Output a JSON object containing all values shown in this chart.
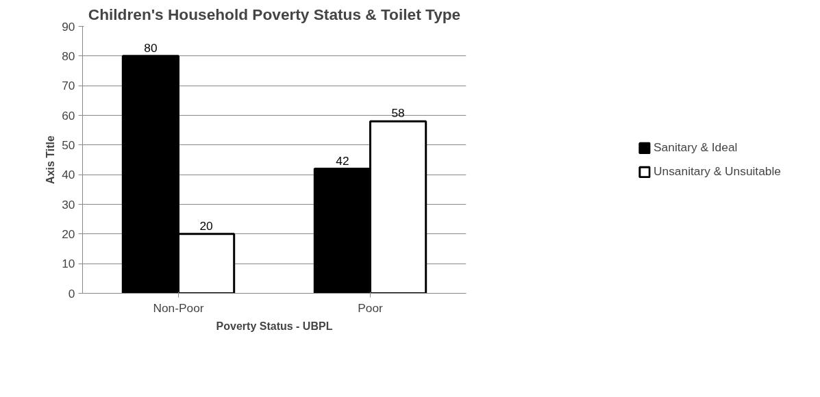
{
  "chart_data": {
    "type": "bar",
    "title": "Children's Household Poverty Status & Toilet Type",
    "xlabel": "Poverty Status - UBPL",
    "ylabel": "Axis Title",
    "categories": [
      "Non-Poor",
      "Poor"
    ],
    "series": [
      {
        "name": "Sanitary & Ideal",
        "color": "#000000",
        "values": [
          80,
          42
        ]
      },
      {
        "name": "Unsanitary & Unsuitable",
        "color": "#ffffff",
        "values": [
          20,
          58
        ]
      }
    ],
    "ylim": [
      0,
      90
    ],
    "yticks": [
      0,
      10,
      20,
      30,
      40,
      50,
      60,
      70,
      80,
      90
    ],
    "grid": "y",
    "legend": "right",
    "data_labels": true
  }
}
